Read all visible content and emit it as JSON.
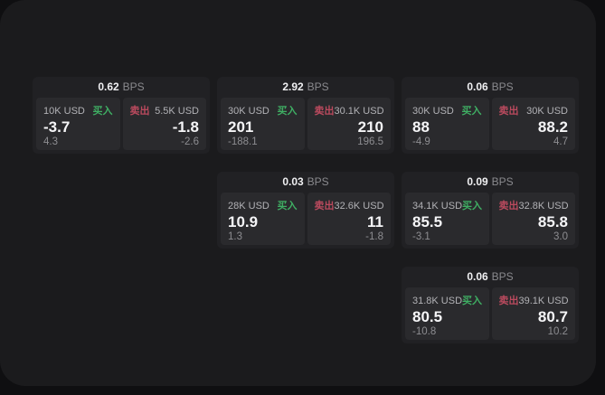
{
  "labels": {
    "bps_unit": "BPS",
    "buy": "买入",
    "sell": "卖出"
  },
  "colors": {
    "background": "#0f0f11",
    "window": "#1b1b1d",
    "card": "#212124",
    "pane": "#2a2a2d",
    "buy_green": "#3fae63",
    "sell_red": "#bb4a5e"
  },
  "cards": [
    {
      "row": 1,
      "col": 1,
      "bps": "0.62",
      "buy": {
        "size": "10K USD",
        "value": "-3.7",
        "delta": "4.3"
      },
      "sell": {
        "size": "5.5K USD",
        "value": "-1.8",
        "delta": "-2.6"
      }
    },
    {
      "row": 1,
      "col": 2,
      "bps": "2.92",
      "buy": {
        "size": "30K USD",
        "value": "201",
        "delta": "-188.1"
      },
      "sell": {
        "size": "30.1K USD",
        "value": "210",
        "delta": "196.5"
      }
    },
    {
      "row": 1,
      "col": 3,
      "bps": "0.06",
      "buy": {
        "size": "30K USD",
        "value": "88",
        "delta": "-4.9"
      },
      "sell": {
        "size": "30K USD",
        "value": "88.2",
        "delta": "4.7"
      }
    },
    {
      "row": 2,
      "col": 2,
      "bps": "0.03",
      "buy": {
        "size": "28K USD",
        "value": "10.9",
        "delta": "1.3"
      },
      "sell": {
        "size": "32.6K USD",
        "value": "11",
        "delta": "-1.8"
      }
    },
    {
      "row": 2,
      "col": 3,
      "bps": "0.09",
      "buy": {
        "size": "34.1K USD",
        "value": "85.5",
        "delta": "-3.1"
      },
      "sell": {
        "size": "32.8K USD",
        "value": "85.8",
        "delta": "3.0"
      }
    },
    {
      "row": 3,
      "col": 3,
      "bps": "0.06",
      "buy": {
        "size": "31.8K USD",
        "value": "80.5",
        "delta": "-10.8"
      },
      "sell": {
        "size": "39.1K USD",
        "value": "80.7",
        "delta": "10.2"
      }
    }
  ]
}
